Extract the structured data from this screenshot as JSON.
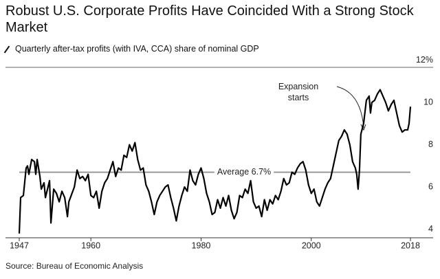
{
  "chart_data": {
    "type": "line",
    "title": "Robust U.S. Corporate Profits Have Coincided With a Strong Stock Market",
    "subtitle": "Quarterly after-tax profits (with IVA, CCA) share of nominal GDP",
    "source": "Source: Bureau of Economic Analysis",
    "annotation": "Expansion starts",
    "average": {
      "value": 6.7,
      "label": "Average 6.7%"
    },
    "color": "#000000",
    "xlim": [
      1947,
      2018
    ],
    "xticks": [
      1947,
      1960,
      1980,
      2000,
      2018
    ],
    "ylim": [
      3.6,
      12
    ],
    "yticks": [
      {
        "value": 12,
        "label": "12%"
      },
      10,
      8,
      6,
      4
    ],
    "x": [
      1947.0,
      1947.25,
      1947.75,
      1948.25,
      1948.5,
      1948.75,
      1949.25,
      1949.75,
      1950.0,
      1950.25,
      1950.75,
      1951.0,
      1951.5,
      1951.75,
      1952.5,
      1952.75,
      1953.25,
      1953.75,
      1954.25,
      1954.75,
      1955.25,
      1955.75,
      1956.0,
      1957.0,
      1957.5,
      1958.0,
      1958.5,
      1959.0,
      1959.5,
      1960.0,
      1960.5,
      1961.0,
      1961.5,
      1962.0,
      1962.5,
      1963.0,
      1963.5,
      1964.0,
      1964.5,
      1965.0,
      1965.5,
      1966.0,
      1966.5,
      1967.0,
      1967.5,
      1968.0,
      1968.5,
      1969.0,
      1969.5,
      1970.0,
      1970.5,
      1971.0,
      1971.5,
      1972.0,
      1972.5,
      1973.0,
      1973.5,
      1974.0,
      1974.5,
      1975.0,
      1975.5,
      1976.0,
      1976.5,
      1977.0,
      1977.5,
      1978.0,
      1978.5,
      1979.0,
      1979.5,
      1980.0,
      1980.5,
      1981.0,
      1981.5,
      1982.0,
      1982.5,
      1983.0,
      1983.5,
      1984.0,
      1984.5,
      1985.0,
      1985.5,
      1986.0,
      1986.5,
      1987.0,
      1987.5,
      1988.0,
      1988.5,
      1989.0,
      1989.5,
      1990.0,
      1990.5,
      1991.0,
      1991.5,
      1992.0,
      1992.5,
      1993.0,
      1993.5,
      1994.0,
      1994.5,
      1995.0,
      1995.5,
      1996.0,
      1996.5,
      1997.0,
      1997.5,
      1998.0,
      1998.5,
      1999.0,
      1999.5,
      2000.0,
      2000.5,
      2001.0,
      2001.5,
      2002.0,
      2002.5,
      2003.0,
      2003.5,
      2004.0,
      2004.5,
      2005.0,
      2005.5,
      2006.0,
      2006.5,
      2007.0,
      2007.5,
      2008.0,
      2008.25,
      2008.5,
      2008.75,
      2009.0,
      2009.5,
      2010.0,
      2010.5,
      2010.75,
      2011.0,
      2011.5,
      2012.0,
      2012.5,
      2013.0,
      2013.5,
      2014.0,
      2014.5,
      2015.0,
      2015.5,
      2016.0,
      2016.5,
      2017.0,
      2017.5,
      2017.75,
      2018.0
    ],
    "values": [
      3.8,
      5.5,
      5.6,
      6.9,
      7.0,
      6.6,
      7.3,
      7.2,
      6.6,
      7.3,
      6.5,
      5.9,
      6.2,
      5.5,
      6.3,
      4.3,
      5.9,
      5.7,
      5.3,
      5.8,
      5.5,
      4.6,
      5.3,
      6.0,
      6.8,
      6.4,
      6.5,
      6.3,
      6.6,
      5.6,
      5.5,
      5.8,
      5.0,
      5.8,
      6.2,
      6.4,
      6.8,
      7.2,
      6.5,
      6.9,
      6.8,
      7.5,
      7.4,
      8.0,
      7.7,
      8.1,
      7.3,
      6.8,
      6.9,
      6.1,
      5.8,
      5.3,
      4.7,
      5.3,
      5.6,
      5.8,
      6.0,
      6.1,
      5.5,
      5.0,
      4.4,
      5.1,
      5.6,
      6.0,
      5.8,
      6.8,
      6.3,
      6.1,
      6.6,
      6.9,
      6.4,
      5.7,
      5.3,
      4.7,
      4.8,
      5.4,
      5.0,
      5.5,
      5.1,
      5.6,
      4.9,
      4.5,
      4.8,
      5.6,
      5.5,
      5.9,
      5.7,
      6.3,
      5.3,
      5.0,
      5.1,
      4.6,
      5.4,
      4.9,
      5.4,
      5.2,
      5.6,
      5.4,
      5.8,
      6.4,
      6.1,
      6.2,
      6.7,
      6.6,
      6.9,
      7.1,
      7.2,
      6.8,
      6.1,
      5.7,
      5.9,
      5.3,
      5.1,
      5.5,
      5.9,
      6.2,
      6.4,
      7.0,
      7.6,
      8.2,
      8.4,
      8.7,
      8.5,
      8.0,
      7.2,
      6.9,
      6.6,
      5.9,
      6.8,
      8.5,
      9.0,
      10.1,
      10.3,
      9.5,
      10.0,
      10.1,
      10.4,
      10.6,
      10.3,
      10.0,
      9.6,
      9.9,
      10.1,
      9.5,
      8.9,
      8.6,
      8.7,
      8.7,
      9.0,
      9.8
    ]
  }
}
